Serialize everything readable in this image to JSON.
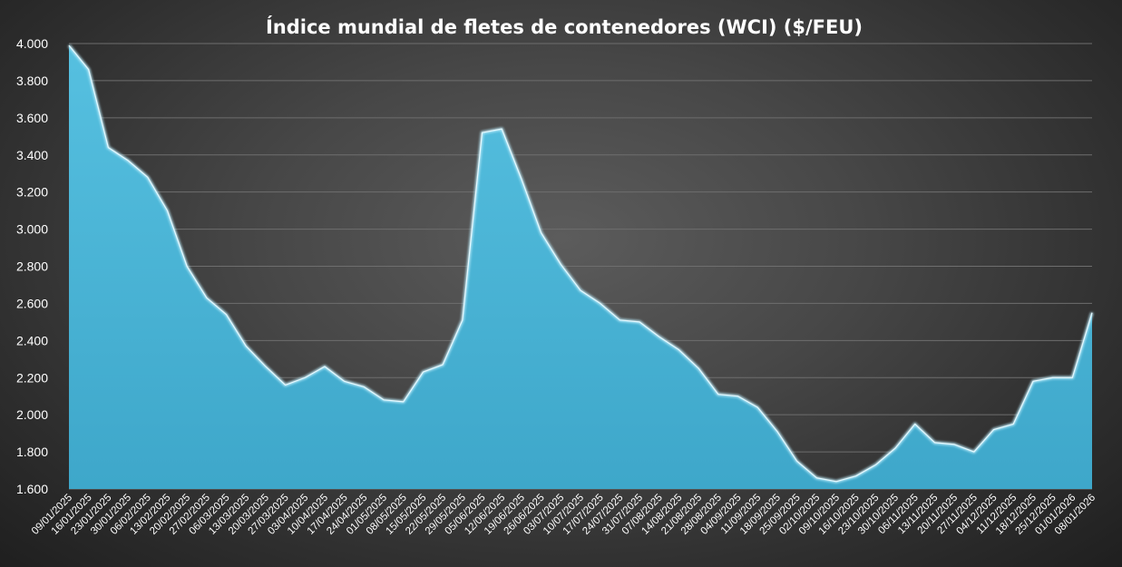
{
  "chart_data": {
    "type": "area",
    "title": "Índice mundial de fletes de contenedores (WCI) ($/FEU)",
    "xlabel": "",
    "ylabel": "",
    "ylim": [
      1600,
      4000
    ],
    "yticks": [
      1600,
      1800,
      2000,
      2200,
      2400,
      2600,
      2800,
      3000,
      3200,
      3400,
      3600,
      3800,
      4000
    ],
    "ytick_labels": [
      "1.600",
      "1.800",
      "2.000",
      "2.200",
      "2.400",
      "2.600",
      "2.800",
      "3.000",
      "3.200",
      "3.400",
      "3.600",
      "3.800",
      "4.000"
    ],
    "grid": true,
    "legend": "none",
    "colors": {
      "fill": "#4fb8d9",
      "fill_dark": "#3aa3c6",
      "edge": "#bfeefc",
      "grid": "#6e6e6e"
    },
    "categories": [
      "09/01/2025",
      "16/01/2025",
      "23/01/2025",
      "30/01/2025",
      "06/02/2025",
      "13/02/2025",
      "20/02/2025",
      "27/02/2025",
      "06/03/2025",
      "13/03/2025",
      "20/03/2025",
      "27/03/2025",
      "03/04/2025",
      "10/04/2025",
      "17/04/2025",
      "24/04/2025",
      "01/05/2025",
      "08/05/2025",
      "15/05/2025",
      "22/05/2025",
      "29/05/2025",
      "05/06/2025",
      "12/06/2025",
      "19/06/2025",
      "26/06/2025",
      "03/07/2025",
      "10/07/2025",
      "17/07/2025",
      "24/07/2025",
      "31/07/2025",
      "07/08/2025",
      "14/08/2025",
      "21/08/2025",
      "28/08/2025",
      "04/09/2025",
      "11/09/2025",
      "18/09/2025",
      "25/09/2025",
      "02/10/2025",
      "09/10/2025",
      "16/10/2025",
      "23/10/2025",
      "30/10/2025",
      "06/11/2025",
      "13/11/2025",
      "20/11/2025",
      "27/11/2025",
      "04/12/2025",
      "11/12/2025",
      "18/12/2025",
      "25/12/2025",
      "01/01/2026",
      "08/01/2026"
    ],
    "series": [
      {
        "values": [
          3990,
          3860,
          3440,
          3370,
          3280,
          3100,
          2800,
          2630,
          2540,
          2370,
          2260,
          2160,
          2200,
          2260,
          2180,
          2150,
          2080,
          2070,
          2230,
          2270,
          2510,
          3520,
          3540,
          3270,
          2980,
          2810,
          2670,
          2600,
          2510,
          2500,
          2420,
          2350,
          2250,
          2110,
          2100,
          2040,
          1910,
          1750,
          1660,
          1640,
          1670,
          1730,
          1820,
          1950,
          1850,
          1840,
          1800,
          1920,
          1950,
          2180,
          2200,
          2200,
          2550
        ]
      }
    ]
  }
}
